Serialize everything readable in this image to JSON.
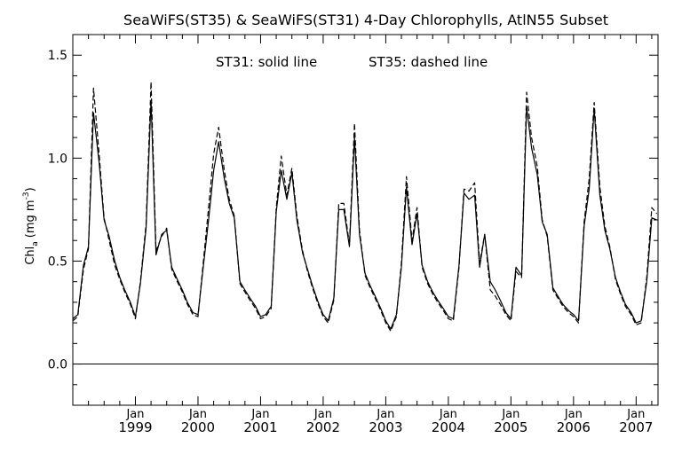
{
  "chart_data": {
    "type": "line",
    "title": "SeaWiFS(ST35) & SeaWiFS(ST31) 4-Day Chlorophylls, AtlN55 Subset",
    "annotation_left": "ST31: solid line",
    "annotation_right": "ST35: dashed line",
    "ylabel_main": "Chl",
    "ylabel_sub": "a",
    "ylabel_unit": "(mg m",
    "ylabel_exp": "-3",
    "ylabel_close": ")",
    "ylim": [
      -0.2,
      1.6
    ],
    "xlim": [
      1998.0,
      2007.35
    ],
    "y_ticks": [
      {
        "value": 0.0,
        "label": "0.0"
      },
      {
        "value": 0.5,
        "label": "0.5"
      },
      {
        "value": 1.0,
        "label": "1.0"
      },
      {
        "value": 1.5,
        "label": "1.5"
      }
    ],
    "x_ticks": [
      {
        "value": 1999.0,
        "month": "Jan",
        "year": "1999"
      },
      {
        "value": 2000.0,
        "month": "Jan",
        "year": "2000"
      },
      {
        "value": 2001.0,
        "month": "Jan",
        "year": "2001"
      },
      {
        "value": 2002.0,
        "month": "Jan",
        "year": "2002"
      },
      {
        "value": 2003.0,
        "month": "Jan",
        "year": "2003"
      },
      {
        "value": 2004.0,
        "month": "Jan",
        "year": "2004"
      },
      {
        "value": 2005.0,
        "month": "Jan",
        "year": "2005"
      },
      {
        "value": 2006.0,
        "month": "Jan",
        "year": "2006"
      },
      {
        "value": 2007.0,
        "month": "Jan",
        "year": "2007"
      }
    ],
    "reference_line_y": 0.0,
    "grid": false,
    "series": [
      {
        "name": "ST31",
        "style": "solid",
        "color": "#000000",
        "x": [
          1998.0,
          1998.08,
          1998.17,
          1998.25,
          1998.33,
          1998.42,
          1998.5,
          1998.58,
          1998.67,
          1998.75,
          1998.83,
          1998.92,
          1999.0,
          1999.08,
          1999.17,
          1999.25,
          1999.33,
          1999.42,
          1999.5,
          1999.58,
          1999.67,
          1999.75,
          1999.83,
          1999.92,
          2000.0,
          2000.08,
          2000.17,
          2000.25,
          2000.33,
          2000.42,
          2000.5,
          2000.58,
          2000.67,
          2000.75,
          2000.83,
          2000.92,
          2001.0,
          2001.08,
          2001.17,
          2001.25,
          2001.33,
          2001.42,
          2001.5,
          2001.58,
          2001.67,
          2001.75,
          2001.83,
          2001.92,
          2002.0,
          2002.08,
          2002.17,
          2002.25,
          2002.33,
          2002.42,
          2002.5,
          2002.58,
          2002.67,
          2002.75,
          2002.83,
          2002.92,
          2003.0,
          2003.08,
          2003.17,
          2003.25,
          2003.33,
          2003.42,
          2003.5,
          2003.58,
          2003.67,
          2003.75,
          2003.83,
          2003.92,
          2004.0,
          2004.08,
          2004.17,
          2004.25,
          2004.33,
          2004.42,
          2004.5,
          2004.58,
          2004.67,
          2004.75,
          2004.83,
          2004.92,
          2005.0,
          2005.08,
          2005.17,
          2005.25,
          2005.33,
          2005.42,
          2005.5,
          2005.58,
          2005.67,
          2005.75,
          2005.83,
          2005.92,
          2006.0,
          2006.08,
          2006.17,
          2006.25,
          2006.33,
          2006.42,
          2006.5,
          2006.58,
          2006.67,
          2006.75,
          2006.83,
          2006.92,
          2007.0,
          2007.08,
          2007.17,
          2007.25,
          2007.33
        ],
        "values": [
          0.22,
          0.24,
          0.48,
          0.57,
          1.22,
          0.98,
          0.7,
          0.62,
          0.5,
          0.42,
          0.36,
          0.3,
          0.23,
          0.39,
          0.66,
          1.28,
          0.53,
          0.63,
          0.65,
          0.47,
          0.41,
          0.36,
          0.3,
          0.25,
          0.24,
          0.46,
          0.7,
          0.94,
          1.08,
          0.9,
          0.78,
          0.71,
          0.4,
          0.36,
          0.32,
          0.28,
          0.23,
          0.24,
          0.28,
          0.74,
          0.94,
          0.8,
          0.93,
          0.7,
          0.54,
          0.46,
          0.38,
          0.3,
          0.24,
          0.21,
          0.32,
          0.75,
          0.75,
          0.57,
          1.1,
          0.63,
          0.44,
          0.38,
          0.33,
          0.27,
          0.21,
          0.17,
          0.24,
          0.47,
          0.86,
          0.58,
          0.73,
          0.48,
          0.4,
          0.35,
          0.31,
          0.27,
          0.23,
          0.22,
          0.48,
          0.83,
          0.8,
          0.82,
          0.47,
          0.63,
          0.4,
          0.36,
          0.31,
          0.25,
          0.22,
          0.47,
          0.43,
          1.25,
          1.05,
          0.92,
          0.69,
          0.63,
          0.37,
          0.33,
          0.29,
          0.26,
          0.24,
          0.21,
          0.67,
          0.85,
          1.24,
          0.82,
          0.65,
          0.56,
          0.42,
          0.35,
          0.29,
          0.25,
          0.2,
          0.21,
          0.4,
          0.71,
          0.7
        ]
      },
      {
        "name": "ST35",
        "style": "dashed",
        "color": "#000000",
        "x": [
          1998.0,
          1998.08,
          1998.17,
          1998.25,
          1998.33,
          1998.42,
          1998.5,
          1998.58,
          1998.67,
          1998.75,
          1998.83,
          1998.92,
          1999.0,
          1999.08,
          1999.17,
          1999.25,
          1999.33,
          1999.42,
          1999.5,
          1999.58,
          1999.67,
          1999.75,
          1999.83,
          1999.92,
          2000.0,
          2000.08,
          2000.17,
          2000.25,
          2000.33,
          2000.42,
          2000.5,
          2000.58,
          2000.67,
          2000.75,
          2000.83,
          2000.92,
          2001.0,
          2001.08,
          2001.17,
          2001.25,
          2001.33,
          2001.42,
          2001.5,
          2001.58,
          2001.67,
          2001.75,
          2001.83,
          2001.92,
          2002.0,
          2002.08,
          2002.17,
          2002.25,
          2002.33,
          2002.42,
          2002.5,
          2002.58,
          2002.67,
          2002.75,
          2002.83,
          2002.92,
          2003.0,
          2003.08,
          2003.17,
          2003.25,
          2003.33,
          2003.42,
          2003.5,
          2003.58,
          2003.67,
          2003.75,
          2003.83,
          2003.92,
          2004.0,
          2004.08,
          2004.17,
          2004.25,
          2004.33,
          2004.42,
          2004.5,
          2004.58,
          2004.67,
          2004.75,
          2004.83,
          2004.92,
          2005.0,
          2005.08,
          2005.17,
          2005.25,
          2005.33,
          2005.42,
          2005.5,
          2005.58,
          2005.67,
          2005.75,
          2005.83,
          2005.92,
          2006.0,
          2006.08,
          2006.17,
          2006.25,
          2006.33,
          2006.42,
          2006.5,
          2006.58,
          2006.67,
          2006.75,
          2006.83,
          2006.92,
          2007.0,
          2007.08,
          2007.17,
          2007.25,
          2007.33
        ],
        "values": [
          0.21,
          0.23,
          0.46,
          0.56,
          1.34,
          1.02,
          0.71,
          0.6,
          0.48,
          0.41,
          0.35,
          0.29,
          0.22,
          0.4,
          0.68,
          1.37,
          0.55,
          0.62,
          0.66,
          0.46,
          0.4,
          0.35,
          0.29,
          0.24,
          0.23,
          0.48,
          0.76,
          1.02,
          1.15,
          0.94,
          0.8,
          0.72,
          0.39,
          0.35,
          0.31,
          0.27,
          0.22,
          0.23,
          0.27,
          0.76,
          1.01,
          0.82,
          0.95,
          0.72,
          0.55,
          0.45,
          0.37,
          0.29,
          0.23,
          0.2,
          0.31,
          0.78,
          0.78,
          0.58,
          1.17,
          0.65,
          0.43,
          0.37,
          0.32,
          0.26,
          0.2,
          0.16,
          0.23,
          0.49,
          0.91,
          0.6,
          0.76,
          0.47,
          0.39,
          0.34,
          0.3,
          0.26,
          0.22,
          0.21,
          0.47,
          0.85,
          0.84,
          0.88,
          0.49,
          0.63,
          0.36,
          0.33,
          0.29,
          0.24,
          0.21,
          0.45,
          0.42,
          1.32,
          1.1,
          0.96,
          0.7,
          0.62,
          0.36,
          0.32,
          0.28,
          0.25,
          0.23,
          0.2,
          0.69,
          0.9,
          1.27,
          0.86,
          0.67,
          0.57,
          0.41,
          0.34,
          0.28,
          0.24,
          0.19,
          0.2,
          0.42,
          0.76,
          0.73
        ]
      }
    ]
  }
}
